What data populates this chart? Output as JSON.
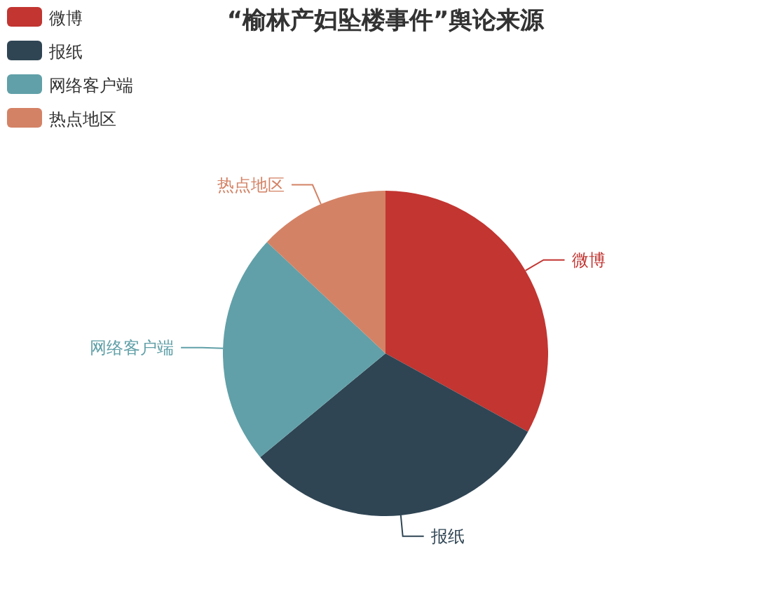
{
  "chart_data": {
    "type": "pie",
    "title": "“榆林产妇坠楼事件”舆论来源",
    "categories": [
      "微博",
      "报纸",
      "网络客户端",
      "热点地区"
    ],
    "values": [
      33,
      31,
      23,
      13
    ],
    "colors": [
      "#c23531",
      "#2f4554",
      "#61a0a8",
      "#d48265"
    ],
    "legend": "top left"
  }
}
